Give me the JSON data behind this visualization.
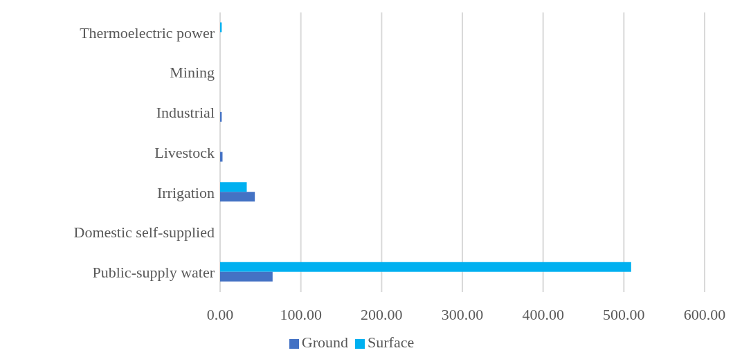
{
  "chart_data": {
    "type": "bar",
    "orientation": "horizontal",
    "categories": [
      "Thermoelectric power",
      "Mining",
      "Industrial",
      "Livestock",
      "Irrigation",
      "Domestic self-supplied",
      "Public-supply water"
    ],
    "series": [
      {
        "name": "Surface",
        "color": "#00b0f0",
        "values": [
          2,
          0,
          0,
          0,
          33,
          0,
          509
        ]
      },
      {
        "name": "Ground",
        "color": "#4472c4",
        "values": [
          0,
          0,
          2,
          3,
          43,
          0,
          65
        ]
      }
    ],
    "xlim": [
      0,
      600
    ],
    "xticks": [
      {
        "value": 0,
        "label": "0.00"
      },
      {
        "value": 100,
        "label": "100.00"
      },
      {
        "value": 200,
        "label": "200.00"
      },
      {
        "value": 300,
        "label": "300.00"
      },
      {
        "value": 400,
        "label": "400.00"
      },
      {
        "value": 500,
        "label": "500.00"
      },
      {
        "value": 600,
        "label": "600.00"
      }
    ],
    "grid": "x",
    "legend": "bottom"
  }
}
